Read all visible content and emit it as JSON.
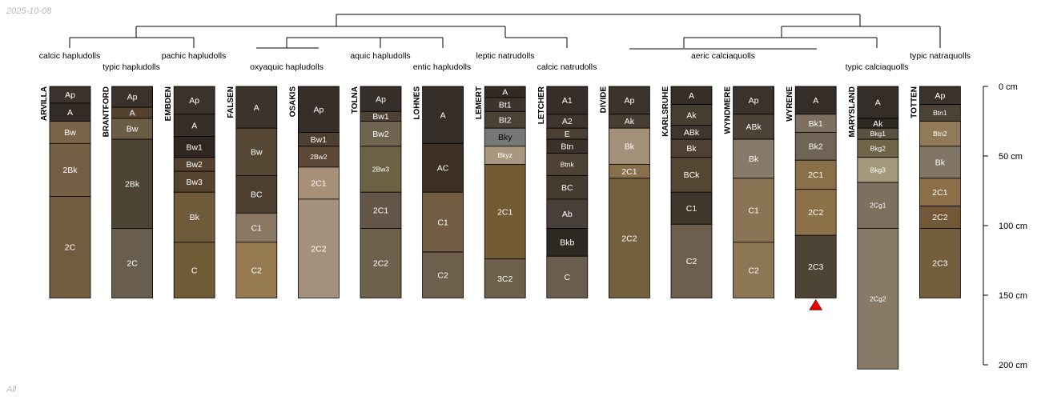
{
  "header": {
    "date": "2025-10-08",
    "footer": "All"
  },
  "colors": {
    "line": "#000000",
    "text_dark": "#000000",
    "text_light": "#ffffff",
    "marker": "#ee0000"
  },
  "depth_axis": {
    "ticks": [
      0,
      50,
      100,
      150,
      200
    ],
    "unit": "cm",
    "max": 200
  },
  "profiles": [
    {
      "id": "ARVILLA",
      "taxon": "calcic hapludolls",
      "total": 152,
      "horizons": [
        {
          "name": "Ap",
          "top": 0,
          "bottom": 12,
          "color": "#3a322c"
        },
        {
          "name": "A",
          "top": 12,
          "bottom": 25,
          "color": "#332b25"
        },
        {
          "name": "Bw",
          "top": 25,
          "bottom": 41,
          "color": "#7b6448"
        },
        {
          "name": "2Bk",
          "top": 41,
          "bottom": 79,
          "color": "#755e43"
        },
        {
          "name": "2C",
          "top": 79,
          "bottom": 152,
          "color": "#735b40"
        }
      ]
    },
    {
      "id": "BRANTFORD",
      "taxon": "typic hapludolls",
      "total": 152,
      "horizons": [
        {
          "name": "Ap",
          "top": 0,
          "bottom": 15,
          "color": "#3b322b"
        },
        {
          "name": "A",
          "top": 15,
          "bottom": 23,
          "color": "#54412e"
        },
        {
          "name": "Bw",
          "top": 23,
          "bottom": 38,
          "color": "#6b5c46"
        },
        {
          "name": "2Bk",
          "top": 38,
          "bottom": 102,
          "color": "#4d4434"
        },
        {
          "name": "2C",
          "top": 102,
          "bottom": 152,
          "color": "#695e4e"
        }
      ]
    },
    {
      "id": "EMBDEN",
      "taxon": "pachic hapludolls",
      "total": 152,
      "horizons": [
        {
          "name": "Ap",
          "top": 0,
          "bottom": 20,
          "color": "#3a322c"
        },
        {
          "name": "A",
          "top": 20,
          "bottom": 36,
          "color": "#362e28"
        },
        {
          "name": "Bw1",
          "top": 36,
          "bottom": 51,
          "color": "#2f271f"
        },
        {
          "name": "Bw2",
          "top": 51,
          "bottom": 61,
          "color": "#52422f"
        },
        {
          "name": "Bw3",
          "top": 61,
          "bottom": 76,
          "color": "#554330"
        },
        {
          "name": "Bk",
          "top": 76,
          "bottom": 112,
          "color": "#6f5b3a"
        },
        {
          "name": "C",
          "top": 112,
          "bottom": 152,
          "color": "#705b37"
        }
      ]
    },
    {
      "id": "FALSEN",
      "taxon": "oxyaquic hapludolls",
      "total": 152,
      "horizons": [
        {
          "name": "A",
          "top": 0,
          "bottom": 30,
          "color": "#3b332d"
        },
        {
          "name": "Bw",
          "top": 30,
          "bottom": 64,
          "color": "#574735"
        },
        {
          "name": "BC",
          "top": 64,
          "bottom": 91,
          "color": "#4f3f30"
        },
        {
          "name": "C1",
          "top": 91,
          "bottom": 112,
          "color": "#8b7862"
        },
        {
          "name": "C2",
          "top": 112,
          "bottom": 152,
          "color": "#957a50"
        }
      ]
    },
    {
      "id": "OSAKIS",
      "taxon": "oxyaquic hapludolls",
      "total": 152,
      "horizons": [
        {
          "name": "Ap",
          "top": 0,
          "bottom": 33,
          "color": "#352e29"
        },
        {
          "name": "Bw1",
          "top": 33,
          "bottom": 43,
          "color": "#4e3f30"
        },
        {
          "name": "2Bw2",
          "top": 43,
          "bottom": 58,
          "color": "#5b4836"
        },
        {
          "name": "2C1",
          "top": 58,
          "bottom": 81,
          "color": "#a88f77"
        },
        {
          "name": "2C2",
          "top": 81,
          "bottom": 152,
          "color": "#a3917d"
        }
      ]
    },
    {
      "id": "TOLNA",
      "taxon": "aquic hapludolls",
      "total": 152,
      "horizons": [
        {
          "name": "Ap",
          "top": 0,
          "bottom": 18,
          "color": "#352e29"
        },
        {
          "name": "Bw1",
          "top": 18,
          "bottom": 25,
          "color": "#4d4234"
        },
        {
          "name": "Bw2",
          "top": 25,
          "bottom": 43,
          "color": "#6f644f"
        },
        {
          "name": "2Bw3",
          "top": 43,
          "bottom": 76,
          "color": "#6e6244"
        },
        {
          "name": "2C1",
          "top": 76,
          "bottom": 102,
          "color": "#64574a"
        },
        {
          "name": "2C2",
          "top": 102,
          "bottom": 152,
          "color": "#6d604d"
        }
      ]
    },
    {
      "id": "LOHNES",
      "taxon": "entic hapludolls",
      "total": 152,
      "horizons": [
        {
          "name": "A",
          "top": 0,
          "bottom": 41,
          "color": "#352e28"
        },
        {
          "name": "AC",
          "top": 41,
          "bottom": 76,
          "color": "#3d3024"
        },
        {
          "name": "C1",
          "top": 76,
          "bottom": 119,
          "color": "#725c42"
        },
        {
          "name": "C2",
          "top": 119,
          "bottom": 152,
          "color": "#6d5f4c"
        }
      ]
    },
    {
      "id": "LEMERT",
      "taxon": "leptic natrudolls",
      "total": 152,
      "horizons": [
        {
          "name": "A",
          "top": 0,
          "bottom": 8,
          "color": "#322b25"
        },
        {
          "name": "Bt1",
          "top": 8,
          "bottom": 18,
          "color": "#3c342d"
        },
        {
          "name": "Bt2",
          "top": 18,
          "bottom": 30,
          "color": "#4b4136"
        },
        {
          "name": "Bky",
          "top": 30,
          "bottom": 43,
          "color": "#777777"
        },
        {
          "name": "Bkyz",
          "top": 43,
          "bottom": 56,
          "color": "#a89880"
        },
        {
          "name": "2C1",
          "top": 56,
          "bottom": 124,
          "color": "#725a35"
        },
        {
          "name": "3C2",
          "top": 124,
          "bottom": 152,
          "color": "#6e5f4d"
        }
      ]
    },
    {
      "id": "LETCHER",
      "taxon": "calcic natrudolls",
      "total": 152,
      "horizons": [
        {
          "name": "A1",
          "top": 0,
          "bottom": 20,
          "color": "#352e29"
        },
        {
          "name": "A2",
          "top": 20,
          "bottom": 30,
          "color": "#3e352e"
        },
        {
          "name": "E",
          "top": 30,
          "bottom": 38,
          "color": "#4b3f33"
        },
        {
          "name": "Btn",
          "top": 38,
          "bottom": 48,
          "color": "#3b3128"
        },
        {
          "name": "Btnk",
          "top": 48,
          "bottom": 64,
          "color": "#4e4236"
        },
        {
          "name": "BC",
          "top": 64,
          "bottom": 81,
          "color": "#453a30"
        },
        {
          "name": "Ab",
          "top": 81,
          "bottom": 102,
          "color": "#484038"
        },
        {
          "name": "Bkb",
          "top": 102,
          "bottom": 122,
          "color": "#2e2823"
        },
        {
          "name": "C",
          "top": 122,
          "bottom": 152,
          "color": "#6b5d4d"
        }
      ]
    },
    {
      "id": "DIVIDE",
      "taxon": "aeric calciaquolls",
      "total": 152,
      "horizons": [
        {
          "name": "Ap",
          "top": 0,
          "bottom": 20,
          "color": "#3a322c"
        },
        {
          "name": "Ak",
          "top": 20,
          "bottom": 30,
          "color": "#483d33"
        },
        {
          "name": "Bk",
          "top": 30,
          "bottom": 56,
          "color": "#a39079"
        },
        {
          "name": "2C1",
          "top": 56,
          "bottom": 66,
          "color": "#8a6f4d"
        },
        {
          "name": "2C2",
          "top": 66,
          "bottom": 152,
          "color": "#73603d"
        }
      ]
    },
    {
      "id": "KARLSRUHE",
      "taxon": "aeric calciaquolls",
      "total": 152,
      "horizons": [
        {
          "name": "A",
          "top": 0,
          "bottom": 13,
          "color": "#352e28"
        },
        {
          "name": "Ak",
          "top": 13,
          "bottom": 28,
          "color": "#463d33"
        },
        {
          "name": "ABk",
          "top": 28,
          "bottom": 38,
          "color": "#3e352d"
        },
        {
          "name": "Bk",
          "top": 38,
          "bottom": 51,
          "color": "#4e4133"
        },
        {
          "name": "BCk",
          "top": 51,
          "bottom": 76,
          "color": "#544632"
        },
        {
          "name": "C1",
          "top": 76,
          "bottom": 99,
          "color": "#3f362c"
        },
        {
          "name": "C2",
          "top": 99,
          "bottom": 152,
          "color": "#6c5f4d"
        }
      ]
    },
    {
      "id": "WYNDMERE",
      "taxon": "aeric calciaquolls",
      "total": 152,
      "horizons": [
        {
          "name": "Ap",
          "top": 0,
          "bottom": 20,
          "color": "#3a322c"
        },
        {
          "name": "ABk",
          "top": 20,
          "bottom": 38,
          "color": "#4d4237"
        },
        {
          "name": "Bk",
          "top": 38,
          "bottom": 66,
          "color": "#877a6b"
        },
        {
          "name": "C1",
          "top": 66,
          "bottom": 112,
          "color": "#8b7453"
        },
        {
          "name": "C2",
          "top": 112,
          "bottom": 152,
          "color": "#8d7653"
        }
      ]
    },
    {
      "id": "WYRENE",
      "taxon": "aeric calciaquolls",
      "total": 152,
      "horizons": [
        {
          "name": "A",
          "top": 0,
          "bottom": 20,
          "color": "#352e28"
        },
        {
          "name": "Bk1",
          "top": 20,
          "bottom": 33,
          "color": "#7d7060"
        },
        {
          "name": "Bk2",
          "top": 33,
          "bottom": 53,
          "color": "#6f6456"
        },
        {
          "name": "2C1",
          "top": 53,
          "bottom": 74,
          "color": "#8a7048"
        },
        {
          "name": "2C2",
          "top": 74,
          "bottom": 107,
          "color": "#8c7047"
        },
        {
          "name": "2C3",
          "top": 107,
          "bottom": 152,
          "color": "#4d4436"
        }
      ]
    },
    {
      "id": "MARYSLAND",
      "taxon": "typic calciaquolls",
      "total": 203,
      "horizons": [
        {
          "name": "A",
          "top": 0,
          "bottom": 23,
          "color": "#352e28"
        },
        {
          "name": "Ak",
          "top": 23,
          "bottom": 30,
          "color": "#2e2823"
        },
        {
          "name": "Bkg1",
          "top": 30,
          "bottom": 38,
          "color": "#5a5140"
        },
        {
          "name": "Bkg2",
          "top": 38,
          "bottom": 51,
          "color": "#6f6348"
        },
        {
          "name": "Bkg3",
          "top": 51,
          "bottom": 69,
          "color": "#a39a7c"
        },
        {
          "name": "2Cg1",
          "top": 69,
          "bottom": 102,
          "color": "#7d705f"
        },
        {
          "name": "2Cg2",
          "top": 102,
          "bottom": 203,
          "color": "#887a66"
        }
      ]
    },
    {
      "id": "TOTTEN",
      "taxon": "typic natraquolls",
      "total": 152,
      "horizons": [
        {
          "name": "Ap",
          "top": 0,
          "bottom": 13,
          "color": "#3a322c"
        },
        {
          "name": "Btn1",
          "top": 13,
          "bottom": 25,
          "color": "#4b4135"
        },
        {
          "name": "Btn2",
          "top": 25,
          "bottom": 43,
          "color": "#927a58"
        },
        {
          "name": "Bk",
          "top": 43,
          "bottom": 66,
          "color": "#817565"
        },
        {
          "name": "2C1",
          "top": 66,
          "bottom": 86,
          "color": "#8c6f48"
        },
        {
          "name": "2C2",
          "top": 86,
          "bottom": 102,
          "color": "#735838"
        },
        {
          "name": "2C3",
          "top": 102,
          "bottom": 152,
          "color": "#735d3a"
        }
      ]
    }
  ],
  "truncated_profiles": [
    "WYRENE"
  ]
}
